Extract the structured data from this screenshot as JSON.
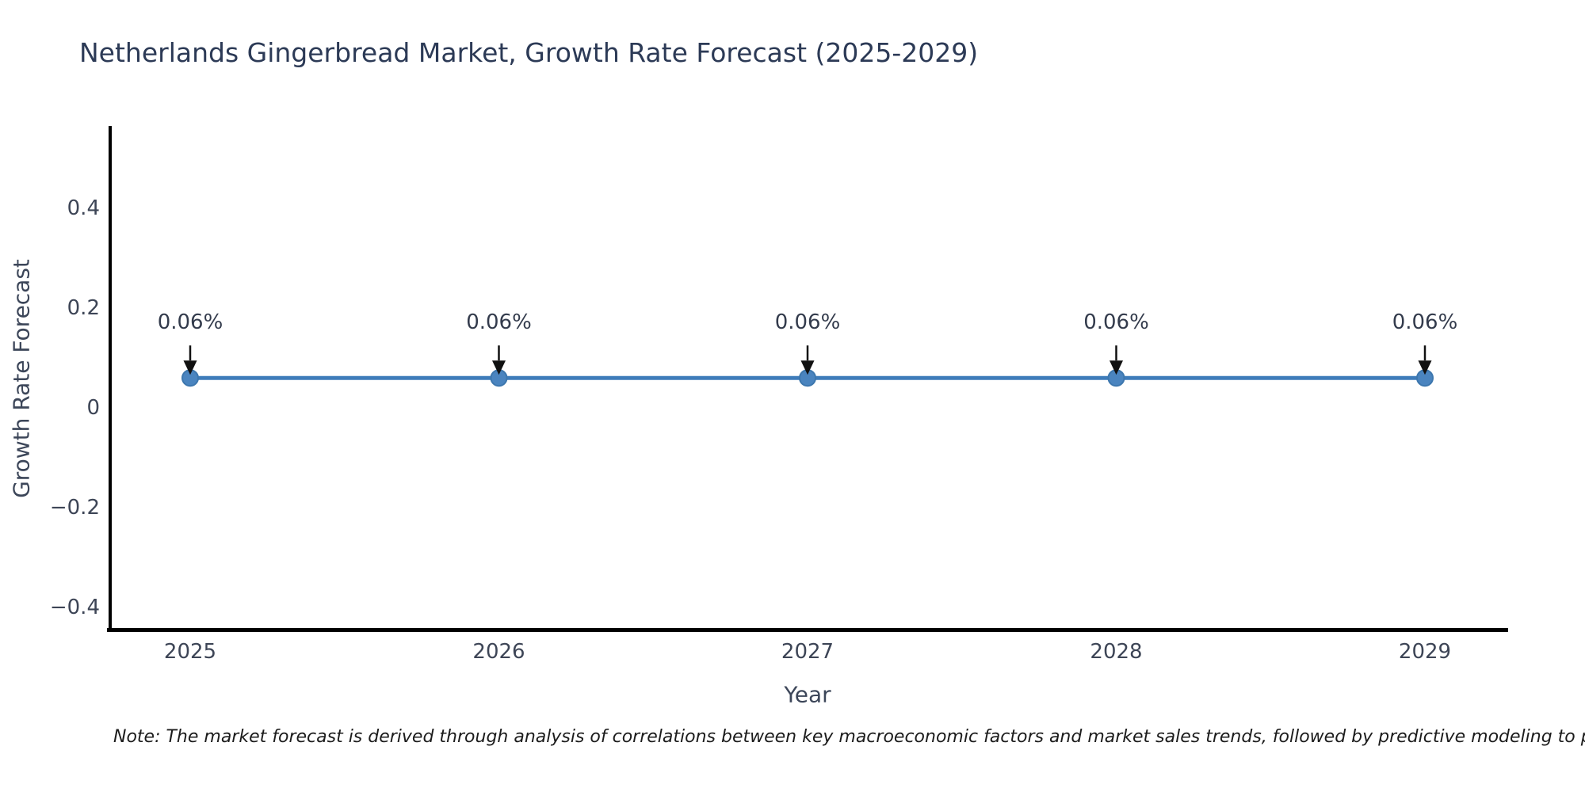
{
  "note": "Note: The market forecast is derived through analysis of correlations between key macroeconomic factors and market sales trends, followed by predictive modeling to project future sales.",
  "chart_data": {
    "type": "line",
    "title": "Netherlands Gingerbread Market, Growth Rate Forecast (2025-2029)",
    "xlabel": "Year",
    "ylabel": "Growth Rate Forecast",
    "categories": [
      "2025",
      "2026",
      "2027",
      "2028",
      "2029"
    ],
    "series": [
      {
        "name": "Growth Rate Forecast",
        "unit": "%",
        "values": [
          0.06,
          0.06,
          0.06,
          0.06,
          0.06
        ]
      }
    ],
    "point_labels": [
      "0.06%",
      "0.06%",
      "0.06%",
      "0.06%",
      "0.06%"
    ],
    "y_ticks": [
      0.4,
      0.2,
      0,
      -0.2,
      -0.4
    ],
    "y_tick_labels": [
      "0.4",
      "0.2",
      "0",
      "−0.2",
      "−0.4"
    ],
    "ylim": [
      -0.44,
      0.56
    ],
    "grid": false,
    "legend": "none",
    "annotation_style": "value label with black down-arrow above each marker",
    "colors": {
      "line": "#3e7cba",
      "marker": "#4a84bf",
      "marker_edge": "#3d77ae",
      "arrow": "#111111",
      "title_text": "#2c3a56",
      "tick_text": "#3d4556",
      "axis_label_text": "#3c4659",
      "note_text": "#1c1c1c",
      "spine": "#000000",
      "background": "#ffffff"
    }
  }
}
